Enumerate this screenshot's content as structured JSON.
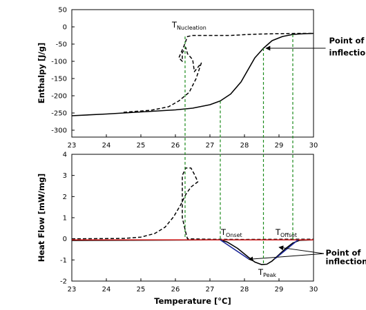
{
  "chart_data": [
    {
      "type": "line",
      "name": "enthalpy",
      "xlabel": "",
      "ylabel": "Enthalpy [J/g]",
      "xlim": [
        23,
        30
      ],
      "ylim": [
        -320,
        50
      ],
      "x_ticks": [
        23,
        24,
        25,
        26,
        27,
        28,
        29,
        30
      ],
      "y_ticks": [
        50,
        0,
        -50,
        -100,
        -150,
        -200,
        -250,
        -300
      ],
      "grid": false,
      "series": [
        {
          "style": "solid",
          "color": "#000000",
          "points": [
            [
              23,
              -258
            ],
            [
              24,
              -253
            ],
            [
              25,
              -247
            ],
            [
              26,
              -241
            ],
            [
              26.5,
              -236
            ],
            [
              27,
              -226
            ],
            [
              27.3,
              -215
            ],
            [
              27.6,
              -195
            ],
            [
              27.9,
              -160
            ],
            [
              28.1,
              -125
            ],
            [
              28.3,
              -90
            ],
            [
              28.55,
              -62
            ],
            [
              28.8,
              -40
            ],
            [
              29.1,
              -28
            ],
            [
              29.4,
              -22
            ],
            [
              29.7,
              -20
            ],
            [
              30,
              -19
            ]
          ]
        },
        {
          "style": "dashed",
          "color": "#000000",
          "points": [
            [
              24.5,
              -248
            ],
            [
              25.3,
              -242
            ],
            [
              25.8,
              -232
            ],
            [
              26.1,
              -215
            ],
            [
              26.4,
              -190
            ],
            [
              26.6,
              -150
            ],
            [
              26.75,
              -105
            ],
            [
              26.55,
              -130
            ],
            [
              26.5,
              -95
            ],
            [
              26.35,
              -78
            ],
            [
              26.3,
              -60
            ],
            [
              26.2,
              -75
            ],
            [
              26.2,
              -100
            ],
            [
              26.1,
              -90
            ],
            [
              26.25,
              -55
            ],
            [
              26.35,
              -28
            ],
            [
              26.5,
              -25
            ],
            [
              27,
              -25
            ],
            [
              27.6,
              -25
            ],
            [
              28.1,
              -22
            ],
            [
              28.8,
              -20
            ],
            [
              29.5,
              -19
            ],
            [
              30,
              -19
            ]
          ]
        }
      ],
      "annotations": [
        {
          "text": "T",
          "sub": "Nucleation",
          "x": 25.9,
          "y": -2
        },
        {
          "text": "Point of",
          "x": 30.45,
          "y": -48
        },
        {
          "text": "inflection",
          "x": 30.45,
          "y": -83
        }
      ],
      "arrows": [
        {
          "from": [
            30.35,
            -62
          ],
          "to": [
            28.62,
            -62
          ]
        }
      ]
    },
    {
      "type": "line",
      "name": "heat-flow",
      "xlabel": "Temperature [°C]",
      "ylabel": "Heat Flow [mW/mg]",
      "xlim": [
        23,
        30
      ],
      "ylim": [
        -2,
        4
      ],
      "x_ticks": [
        23,
        24,
        25,
        26,
        27,
        28,
        29,
        30
      ],
      "y_ticks": [
        4,
        3,
        2,
        1,
        0,
        -1,
        -2
      ],
      "grid": false,
      "series": [
        {
          "style": "solid",
          "color": "#000000",
          "points": [
            [
              23,
              -0.08
            ],
            [
              26,
              -0.06
            ],
            [
              27,
              -0.05
            ],
            [
              27.3,
              -0.05
            ],
            [
              27.5,
              -0.15
            ],
            [
              27.8,
              -0.45
            ],
            [
              28.1,
              -0.85
            ],
            [
              28.3,
              -1.1
            ],
            [
              28.5,
              -1.22
            ],
            [
              28.65,
              -1.2
            ],
            [
              28.8,
              -1.05
            ],
            [
              29,
              -0.75
            ],
            [
              29.2,
              -0.45
            ],
            [
              29.4,
              -0.2
            ],
            [
              29.6,
              -0.07
            ],
            [
              30,
              -0.05
            ]
          ]
        },
        {
          "style": "dashed",
          "color": "#000000",
          "points": [
            [
              23,
              0.0
            ],
            [
              24.5,
              0.02
            ],
            [
              25,
              0.08
            ],
            [
              25.4,
              0.25
            ],
            [
              25.7,
              0.55
            ],
            [
              25.95,
              1.05
            ],
            [
              26.15,
              1.6
            ],
            [
              26.3,
              2.1
            ],
            [
              26.45,
              2.45
            ],
            [
              26.65,
              2.7
            ],
            [
              26.55,
              3.05
            ],
            [
              26.45,
              3.35
            ],
            [
              26.3,
              3.35
            ],
            [
              26.2,
              3.0
            ],
            [
              26.2,
              1.0
            ],
            [
              26.3,
              0.3
            ],
            [
              26.35,
              0.0
            ],
            [
              27,
              -0.02
            ],
            [
              28,
              -0.03
            ],
            [
              29,
              -0.02
            ],
            [
              30,
              -0.02
            ]
          ]
        },
        {
          "style": "solid",
          "color": "#cc2222",
          "points": [
            [
              23,
              -0.05
            ],
            [
              30,
              -0.05
            ]
          ]
        },
        {
          "style": "solid",
          "color": "#1f2a9a",
          "points": [
            [
              27.3,
              -0.05
            ],
            [
              28.12,
              -0.95
            ]
          ]
        },
        {
          "style": "solid",
          "color": "#1f2a9a",
          "points": [
            [
              28.88,
              -0.95
            ],
            [
              29.55,
              -0.05
            ]
          ]
        }
      ],
      "annotations": [
        {
          "text": "T",
          "sub": "Onset",
          "x": 27.32,
          "y": 0.18
        },
        {
          "text": "T",
          "sub": "Offset",
          "x": 28.9,
          "y": 0.18
        },
        {
          "text": "T",
          "sub": "Peak",
          "x": 28.4,
          "y": -1.7
        },
        {
          "text": "Point of",
          "x": 30.35,
          "y": -0.8
        },
        {
          "text": "inflection",
          "x": 30.35,
          "y": -1.2
        }
      ],
      "arrows": [
        {
          "from": [
            30.3,
            -0.7
          ],
          "to": [
            28.12,
            -0.97
          ]
        },
        {
          "from": [
            30.3,
            -0.7
          ],
          "to": [
            29.0,
            -0.4
          ]
        }
      ]
    }
  ],
  "vlines": [
    {
      "x": 26.28,
      "from_panel": 0,
      "from_y": -28,
      "to_panel": 1,
      "to_y": 0.0
    },
    {
      "x": 27.3,
      "from_panel": 0,
      "from_y": -215,
      "to_panel": 1,
      "to_y": -0.05
    },
    {
      "x": 28.55,
      "from_panel": 0,
      "from_y": -62,
      "to_panel": 1,
      "to_y": -1.22
    },
    {
      "x": 29.4,
      "from_panel": 0,
      "from_y": -22,
      "to_panel": 1,
      "to_y": -0.05
    }
  ],
  "vline_color": "#1a8a1a"
}
